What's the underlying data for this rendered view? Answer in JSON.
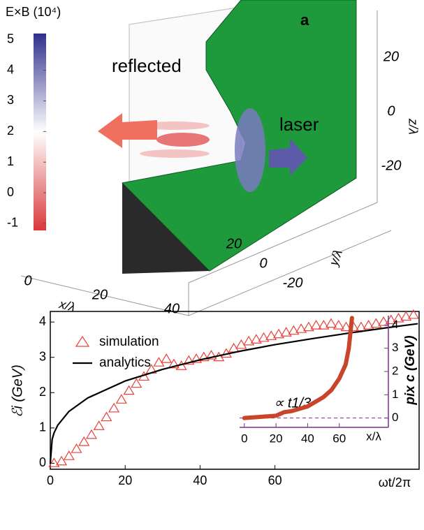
{
  "chart_data": [
    {
      "type": "surface3d",
      "panel_label": "a",
      "annotations": [
        "reflected",
        "laser"
      ],
      "colorbar": {
        "label": "E×B (10⁴)",
        "lim": [
          -1.23,
          5.2
        ],
        "ticks": [
          5,
          4,
          3,
          2,
          1,
          0,
          -1
        ],
        "colors": [
          "#d9383a",
          "#ffffff",
          "#2e2f8c"
        ]
      },
      "xlabel": "x/λ",
      "ylabel": "y/λ",
      "zlabel": "z/λ",
      "xticks": [
        0,
        20,
        40
      ],
      "yticks": [
        20,
        0,
        -20
      ],
      "zticks": [
        20,
        0,
        -20
      ]
    },
    {
      "type": "line",
      "xlim": [
        0,
        98.5
      ],
      "ylim": [
        -0.17,
        4.3
      ],
      "xticks": [
        0,
        20,
        40,
        60
      ],
      "yticks": [
        0,
        1,
        2,
        3,
        4
      ],
      "xlabel": "ωt/2π",
      "ylabel": "ℰi (GeV)",
      "annotation": "∝ t1/3",
      "series": [
        {
          "name": "simulation",
          "color": "#e8413a",
          "marker": "triangle-open",
          "x": [
            1,
            3,
            5,
            7,
            9,
            11,
            13,
            15,
            17,
            19,
            21,
            23,
            25,
            27,
            29,
            31,
            33,
            35,
            37,
            39,
            41,
            43,
            45,
            47,
            49,
            51,
            53,
            55,
            57,
            59,
            61,
            63,
            65,
            67,
            69,
            71,
            73,
            75,
            77,
            79,
            81,
            83,
            85,
            87,
            89,
            91,
            93,
            95,
            97
          ],
          "values": [
            0,
            0.05,
            0.2,
            0.4,
            0.6,
            0.8,
            1.05,
            1.3,
            1.55,
            1.8,
            2.05,
            2.25,
            2.45,
            2.65,
            2.85,
            2.95,
            2.8,
            2.75,
            2.9,
            2.95,
            3.0,
            3.05,
            3.0,
            3.1,
            3.25,
            3.35,
            3.45,
            3.5,
            3.55,
            3.6,
            3.65,
            3.7,
            3.75,
            3.8,
            3.85,
            3.9,
            3.9,
            3.95,
            3.9,
            3.85,
            3.85,
            3.85,
            3.9,
            3.95,
            4.0,
            4.05,
            4.1,
            4.15,
            4.2
          ]
        },
        {
          "name": "analytics",
          "color": "#000000",
          "x": [
            0,
            0.5,
            1,
            2,
            5,
            10,
            20,
            30,
            40,
            50,
            60,
            70,
            80,
            90,
            98
          ],
          "values": [
            0,
            0.68,
            0.86,
            1.08,
            1.47,
            1.85,
            2.33,
            2.66,
            2.93,
            3.16,
            3.36,
            3.53,
            3.69,
            3.84,
            3.95
          ]
        }
      ]
    },
    {
      "type": "line",
      "xlim": [
        -3,
        91
      ],
      "ylim": [
        -0.4,
        4.4
      ],
      "xticks": [
        0,
        20,
        40,
        60
      ],
      "yticks": [
        0,
        1,
        2,
        3,
        4
      ],
      "xlabel": "x/λ",
      "ylabel": "pix c (GeV)",
      "color": "#7b2d8e",
      "reference_line": 0,
      "series": [
        {
          "color": "#c8452c",
          "x": [
            0,
            10,
            20,
            25,
            30,
            40,
            50,
            55,
            60,
            64,
            66,
            68
          ],
          "values": [
            0,
            0.05,
            0.1,
            0.25,
            0.3,
            0.5,
            0.9,
            1.2,
            1.7,
            2.3,
            3.0,
            4.3
          ]
        }
      ]
    }
  ]
}
